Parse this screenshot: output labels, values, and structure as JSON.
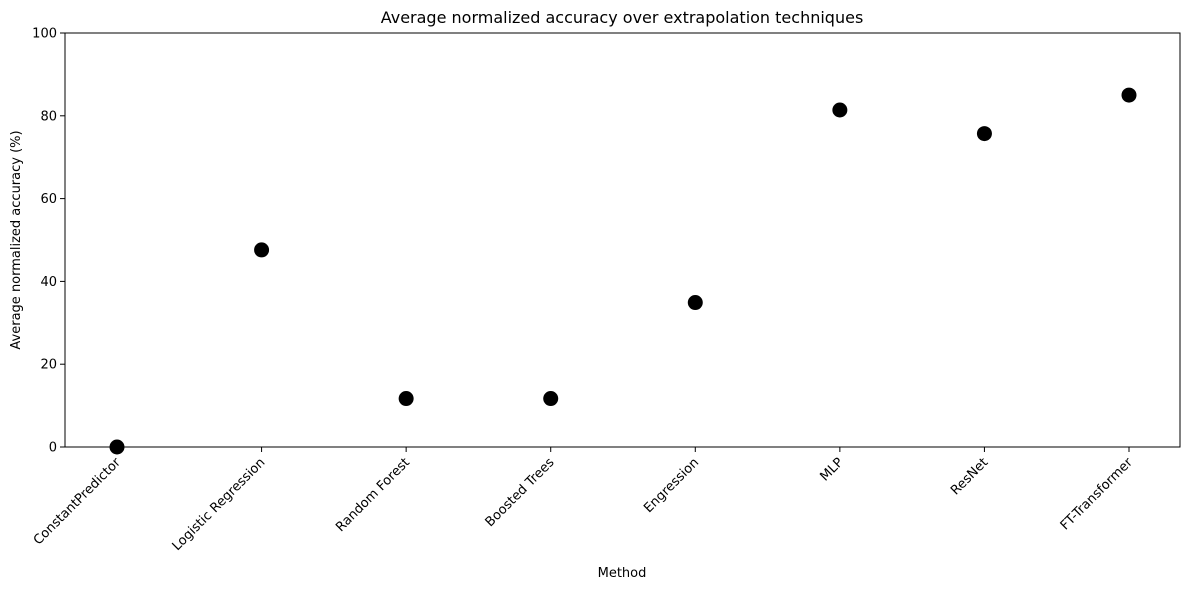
{
  "chart_data": {
    "type": "scatter",
    "title": "Average normalized accuracy over extrapolation techniques",
    "xlabel": "Method",
    "ylabel": "Average normalized accuracy (%)",
    "categories": [
      "ConstantPredictor",
      "Logistic Regression",
      "Random Forest",
      "Boosted Trees",
      "Engression",
      "MLP",
      "ResNet",
      "FT-Transformer"
    ],
    "values": [
      0,
      47.6,
      11.7,
      11.7,
      34.9,
      81.4,
      75.7,
      85.0
    ],
    "ylim": [
      0,
      100
    ],
    "yticks": [
      0,
      20,
      40,
      60,
      80,
      100
    ],
    "grid": false,
    "marker_color": "#000000"
  }
}
